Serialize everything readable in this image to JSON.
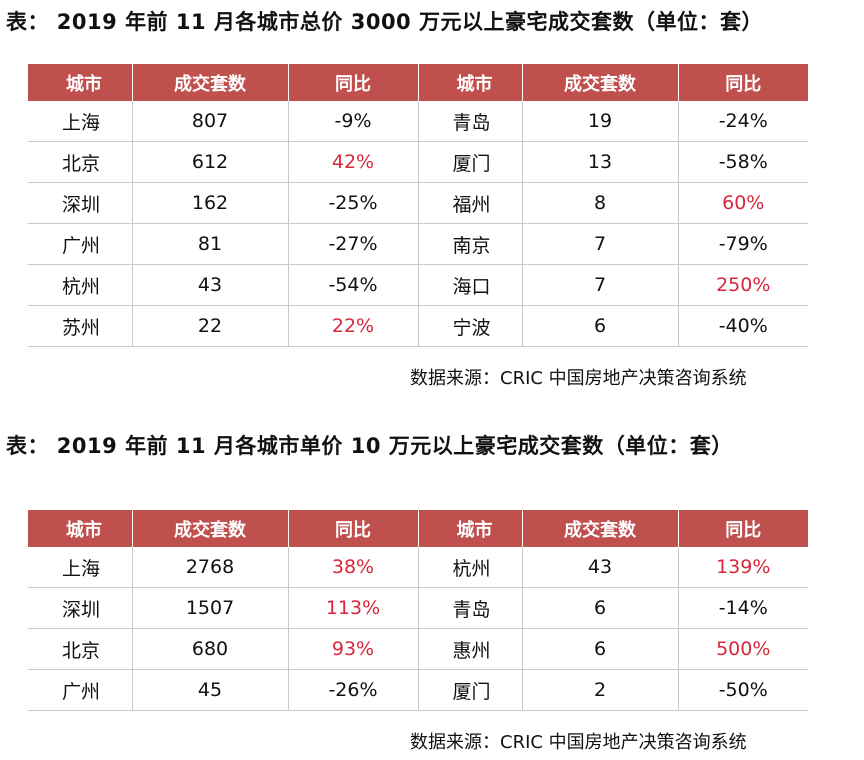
{
  "table1": {
    "title": "表：  2019 年前 11 月各城市总价 3000 万元以上豪宅成交套数（单位：套）",
    "headers": [
      "城市",
      "成交套数",
      "同比",
      "城市",
      "成交套数",
      "同比"
    ],
    "rows": [
      {
        "city_l": "上海",
        "count_l": "807",
        "yoy_l": "-9%",
        "city_r": "青岛",
        "count_r": "19",
        "yoy_r": "-24%"
      },
      {
        "city_l": "北京",
        "count_l": "612",
        "yoy_l": "42%",
        "city_r": "厦门",
        "count_r": "13",
        "yoy_r": "-58%"
      },
      {
        "city_l": "深圳",
        "count_l": "162",
        "yoy_l": "-25%",
        "city_r": "福州",
        "count_r": "8",
        "yoy_r": "60%"
      },
      {
        "city_l": "广州",
        "count_l": "81",
        "yoy_l": "-27%",
        "city_r": "南京",
        "count_r": "7",
        "yoy_r": "-79%"
      },
      {
        "city_l": "杭州",
        "count_l": "43",
        "yoy_l": "-54%",
        "city_r": "海口",
        "count_r": "7",
        "yoy_r": "250%"
      },
      {
        "city_l": "苏州",
        "count_l": "22",
        "yoy_l": "22%",
        "city_r": "宁波",
        "count_r": "6",
        "yoy_r": "-40%"
      }
    ],
    "source": "数据来源：CRIC 中国房地产决策咨询系统"
  },
  "table2": {
    "title": "表：  2019 年前 11 月各城市单价 10 万元以上豪宅成交套数（单位：套）",
    "headers": [
      "城市",
      "成交套数",
      "同比",
      "城市",
      "成交套数",
      "同比"
    ],
    "rows": [
      {
        "city_l": "上海",
        "count_l": "2768",
        "yoy_l": "38%",
        "city_r": "杭州",
        "count_r": "43",
        "yoy_r": "139%"
      },
      {
        "city_l": "深圳",
        "count_l": "1507",
        "yoy_l": "113%",
        "city_r": "青岛",
        "count_r": "6",
        "yoy_r": "-14%"
      },
      {
        "city_l": "北京",
        "count_l": "680",
        "yoy_l": "93%",
        "city_r": "惠州",
        "count_r": "6",
        "yoy_r": "500%"
      },
      {
        "city_l": "广州",
        "count_l": "45",
        "yoy_l": "-26%",
        "city_r": "厦门",
        "count_r": "2",
        "yoy_r": "-50%"
      }
    ],
    "source": "数据来源：CRIC 中国房地产决策咨询系统"
  },
  "colors": {
    "header_bg": "#c0504d",
    "header_text": "#ffffff",
    "positive_change": "#d6283a",
    "row_border": "#c9c9c9"
  }
}
